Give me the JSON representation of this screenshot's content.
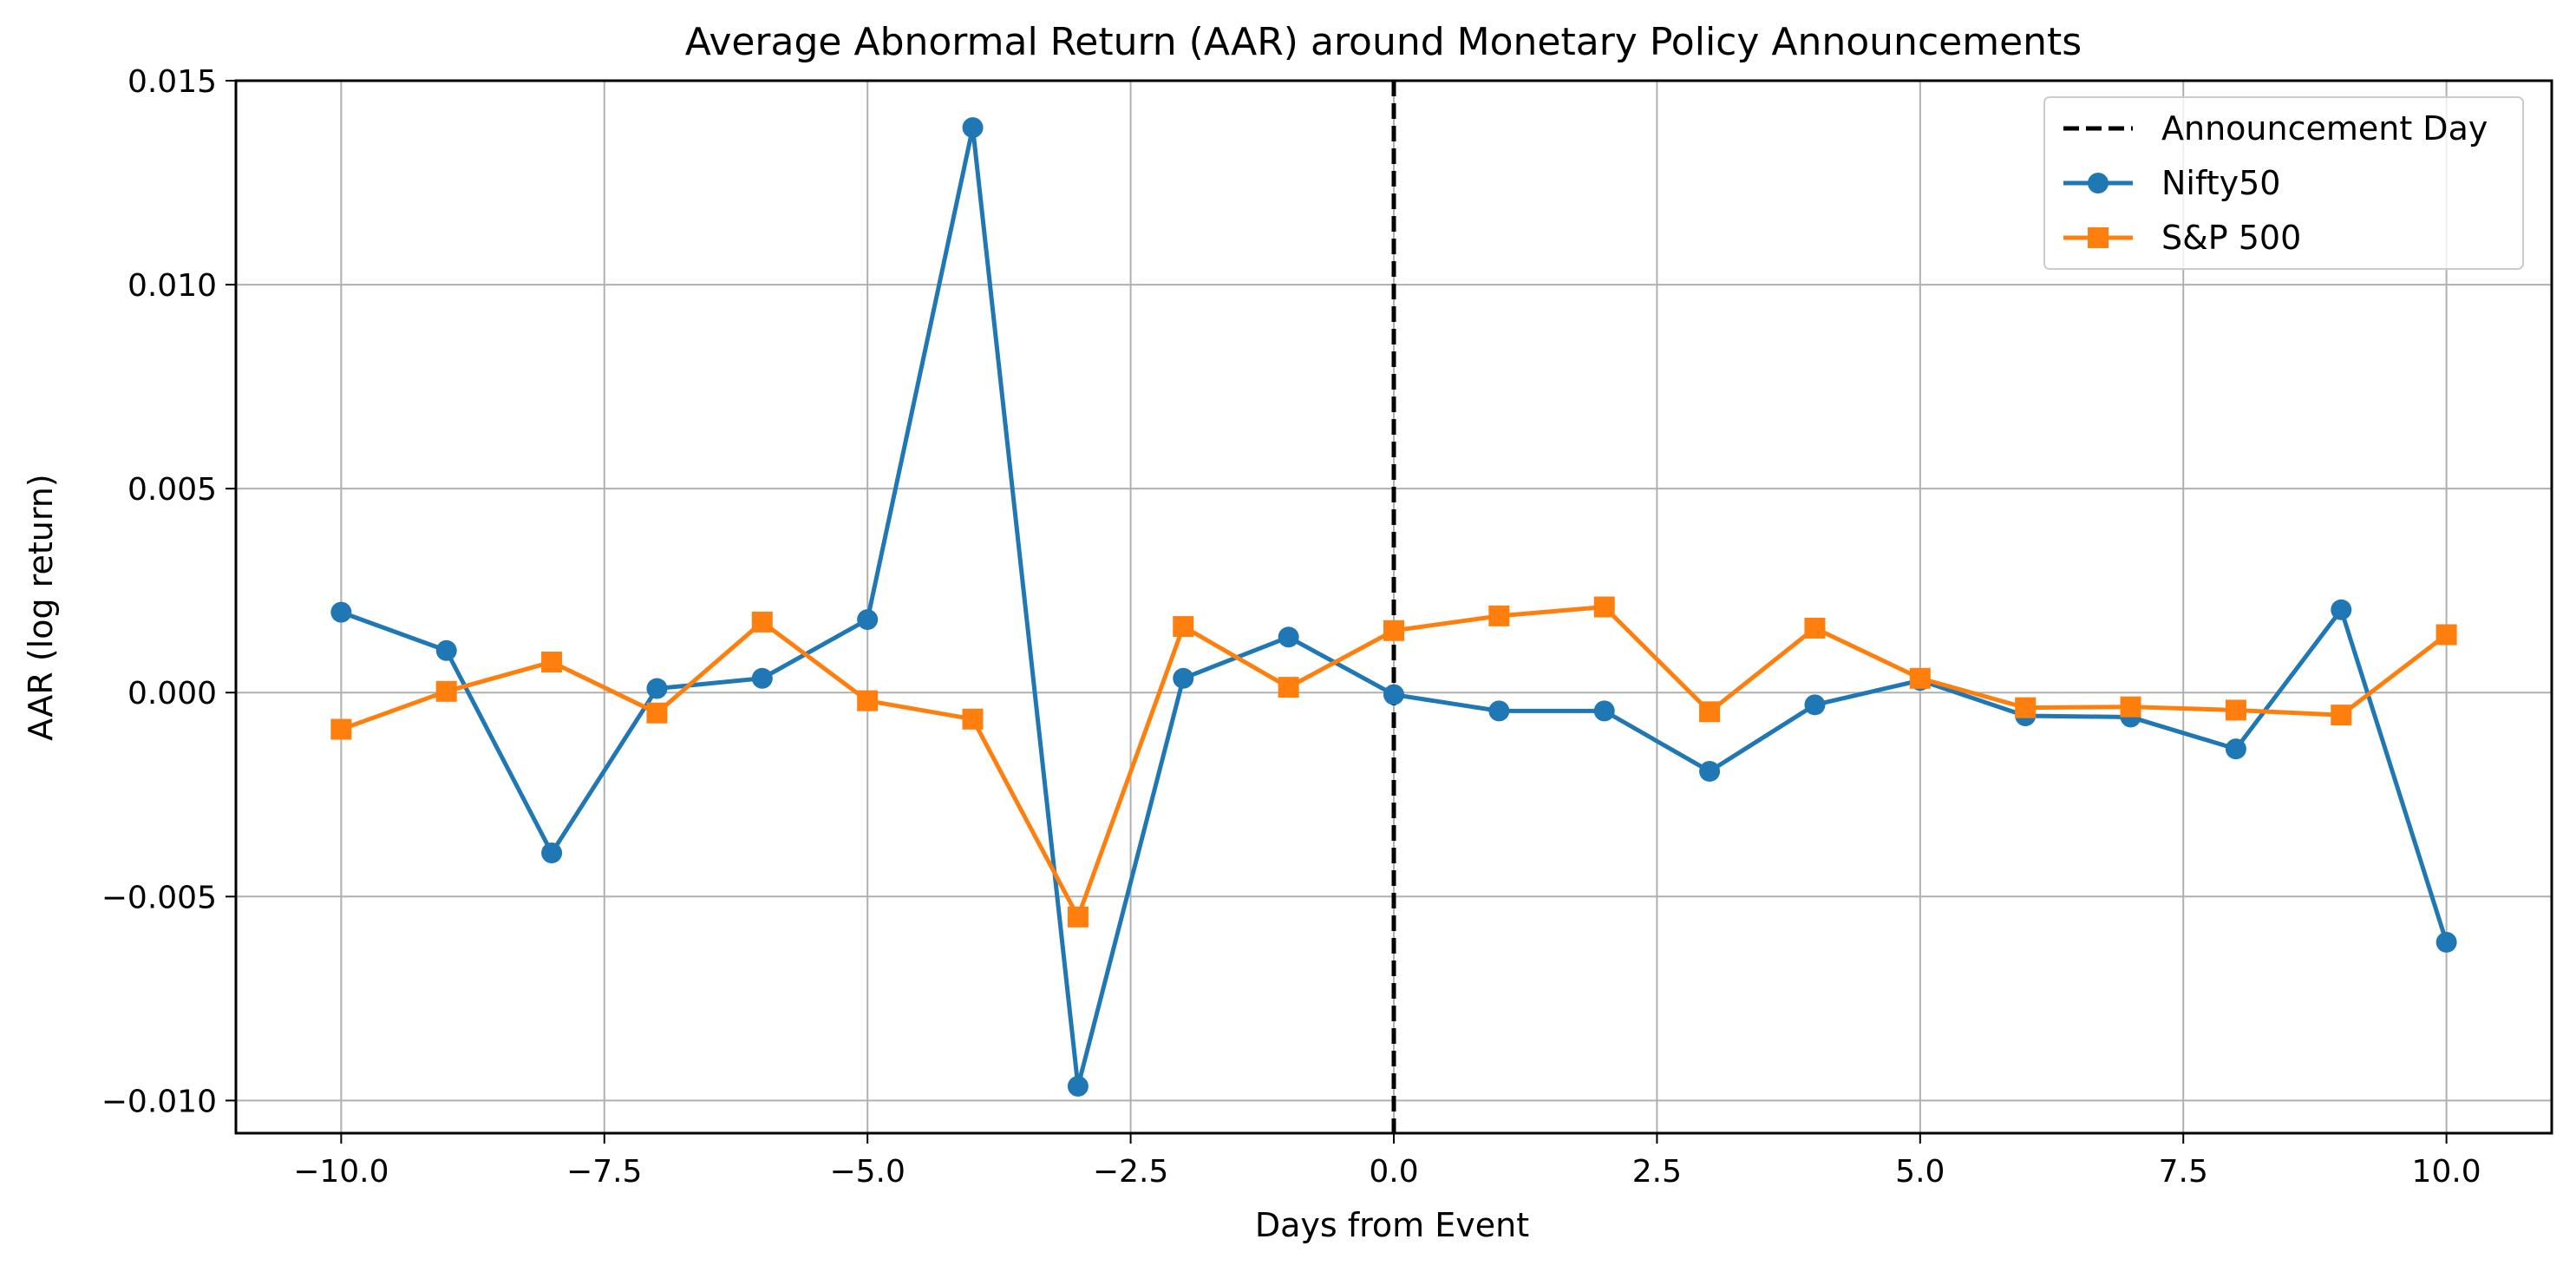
{
  "chart_data": {
    "type": "line",
    "title": "Average Abnormal Return (AAR) around Monetary Policy Announcements",
    "xlabel": "Days from Event",
    "ylabel": "AAR (log return)",
    "xlim": [
      -11,
      11
    ],
    "ylim": [
      -0.0108,
      0.015
    ],
    "xticks": [
      -10,
      -7.5,
      -5,
      -2.5,
      0,
      2.5,
      5,
      7.5,
      10
    ],
    "xtick_labels": [
      "−10.0",
      "−7.5",
      "−5.0",
      "−2.5",
      "0.0",
      "2.5",
      "5.0",
      "7.5",
      "10.0"
    ],
    "yticks": [
      -0.01,
      -0.005,
      0,
      0.005,
      0.01,
      0.015
    ],
    "ytick_labels": [
      "−0.010",
      "−0.005",
      "0.000",
      "0.005",
      "0.010",
      "0.015"
    ],
    "grid": true,
    "legend_position": "top-right",
    "x": [
      -10,
      -9,
      -8,
      -7,
      -6,
      -5,
      -4,
      -3,
      -2,
      -1,
      0,
      1,
      2,
      3,
      4,
      5,
      6,
      7,
      8,
      9,
      10
    ],
    "vline": {
      "x": 0,
      "label": "Announcement Day",
      "color": "#000000",
      "style": "dashed"
    },
    "series": [
      {
        "name": "Nifty50",
        "color": "#1f77b4",
        "marker": "circle",
        "values": [
          0.00197,
          0.00103,
          -0.00393,
          0.0001,
          0.00035,
          0.00179,
          0.01385,
          -0.00965,
          0.00035,
          0.00136,
          -5e-05,
          -0.00045,
          -0.00045,
          -0.00193,
          -0.0003,
          0.0003,
          -0.00057,
          -0.0006,
          -0.00138,
          0.00203,
          -0.00612
        ]
      },
      {
        "name": "S&P 500",
        "color": "#ff7f0e",
        "marker": "square",
        "values": [
          -0.0009,
          3e-05,
          0.00075,
          -0.0005,
          0.00173,
          -0.0002,
          -0.00065,
          -0.0055,
          0.00162,
          0.00013,
          0.00152,
          0.00188,
          0.0021,
          -0.00047,
          0.00158,
          0.00035,
          -0.00037,
          -0.00035,
          -0.00043,
          -0.00055,
          0.00142
        ]
      }
    ]
  }
}
